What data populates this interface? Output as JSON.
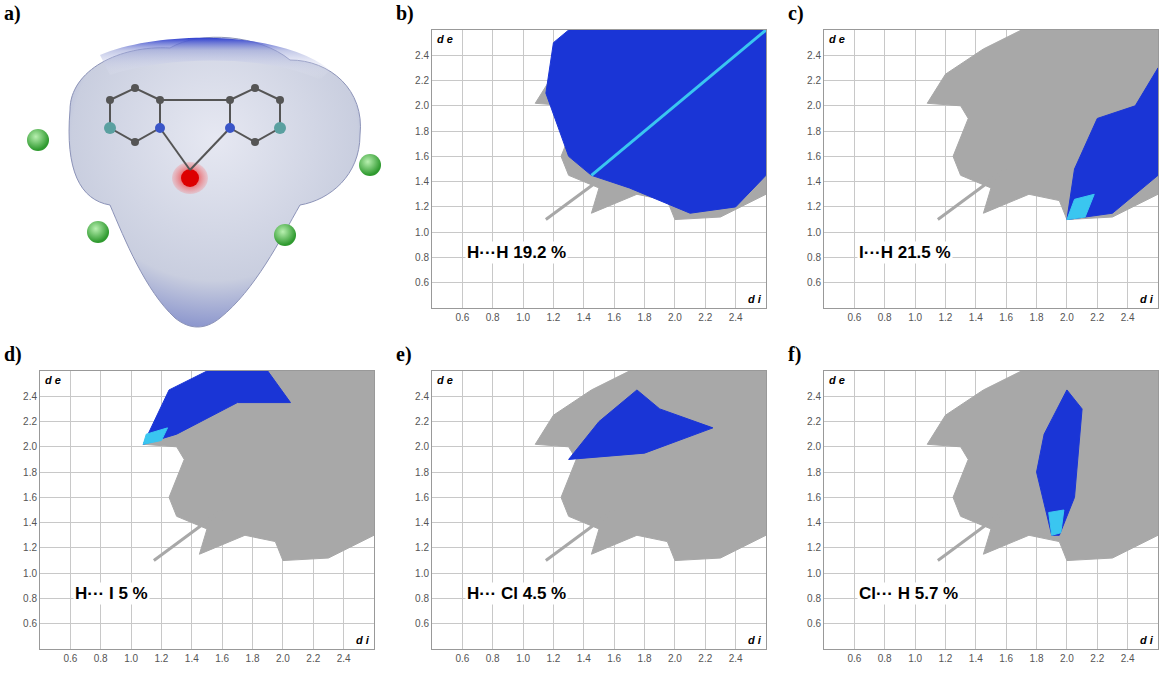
{
  "surface_panel": {
    "label": "a)"
  },
  "chart_data": [
    {
      "type": "scatter",
      "label": "b)",
      "annotation": "H···H 19.2 %",
      "x_label": "d i",
      "y_label": "d e",
      "xlim": [
        0.4,
        2.6
      ],
      "ylim": [
        0.4,
        2.6
      ],
      "xticks": [
        0.6,
        0.8,
        {
          "value": 1,
          "label": "1.0"
        },
        1.2,
        1.4,
        1.6,
        1.8,
        {
          "value": 2,
          "label": "2.0"
        },
        2.2,
        2.4
      ],
      "yticks": [
        0.6,
        0.8,
        {
          "value": 1,
          "label": "1.0"
        },
        1.2,
        1.4,
        1.6,
        1.8,
        {
          "value": 2,
          "label": "2.0"
        },
        2.2,
        2.4
      ],
      "grid": true,
      "series": [
        {
          "type": "area",
          "color": "#a8a8a8",
          "x": [
            1.08,
            1.2,
            1.45,
            1.7,
            2.6,
            2.6,
            2.3,
            2.0,
            1.95,
            1.75,
            1.55,
            1.45,
            1.5,
            1.3,
            1.25,
            1.35,
            1.3,
            1.08
          ],
          "y": [
            2.02,
            2.25,
            2.45,
            2.6,
            2.6,
            1.3,
            1.12,
            1.1,
            1.25,
            1.3,
            1.2,
            1.15,
            1.35,
            1.45,
            1.6,
            1.9,
            2.0,
            2.02
          ]
        },
        {
          "type": "line",
          "color": "#a8a8a8",
          "x": [
            1.15,
            1.6
          ],
          "y": [
            1.1,
            1.5
          ]
        },
        {
          "type": "area",
          "color": "#1a35d6",
          "x": [
            1.2,
            1.15,
            1.3,
            1.45,
            1.7,
            2.1,
            2.4,
            2.6,
            2.6,
            1.3,
            1.2
          ],
          "y": [
            2.5,
            2.1,
            1.6,
            1.45,
            1.35,
            1.15,
            1.2,
            1.45,
            2.6,
            2.6,
            2.5
          ]
        },
        {
          "type": "line",
          "color": "#3ac6f0",
          "x": [
            1.45,
            2.6
          ],
          "y": [
            1.45,
            2.6
          ]
        }
      ]
    },
    {
      "type": "scatter",
      "label": "c)",
      "annotation": "I···H 21.5 %",
      "x_label": "d i",
      "y_label": "d e",
      "xlim": [
        0.4,
        2.6
      ],
      "ylim": [
        0.4,
        2.6
      ],
      "xticks": [
        0.6,
        0.8,
        {
          "value": 1,
          "label": "1.0"
        },
        1.2,
        1.4,
        1.6,
        1.8,
        {
          "value": 2,
          "label": "2.0"
        },
        2.2,
        2.4
      ],
      "yticks": [
        0.6,
        0.8,
        {
          "value": 1,
          "label": "1.0"
        },
        1.2,
        1.4,
        1.6,
        1.8,
        {
          "value": 2,
          "label": "2.0"
        },
        2.2,
        2.4
      ],
      "grid": true,
      "series": [
        {
          "type": "area",
          "color": "#a8a8a8",
          "x": [
            1.08,
            1.2,
            1.45,
            1.7,
            2.6,
            2.6,
            2.3,
            2.0,
            1.95,
            1.75,
            1.55,
            1.45,
            1.5,
            1.3,
            1.25,
            1.35,
            1.3,
            1.08
          ],
          "y": [
            2.02,
            2.25,
            2.45,
            2.6,
            2.6,
            1.3,
            1.12,
            1.1,
            1.25,
            1.3,
            1.2,
            1.15,
            1.35,
            1.45,
            1.6,
            1.9,
            2.0,
            2.02
          ]
        },
        {
          "type": "line",
          "color": "#a8a8a8",
          "x": [
            1.15,
            1.6
          ],
          "y": [
            1.1,
            1.5
          ]
        },
        {
          "type": "area",
          "color": "#1a35d6",
          "x": [
            2.0,
            2.3,
            2.6,
            2.6,
            2.45,
            2.2,
            2.05,
            2.0
          ],
          "y": [
            1.1,
            1.15,
            1.45,
            2.3,
            2.0,
            1.9,
            1.5,
            1.1
          ]
        },
        {
          "type": "area",
          "color": "#3ac6f0",
          "x": [
            2.0,
            2.12,
            2.18,
            2.05,
            2.0
          ],
          "y": [
            1.1,
            1.12,
            1.3,
            1.26,
            1.1
          ]
        }
      ]
    },
    {
      "type": "scatter",
      "label": "d)",
      "annotation": "H··· I 5 %",
      "x_label": "d i",
      "y_label": "d e",
      "xlim": [
        0.4,
        2.6
      ],
      "ylim": [
        0.4,
        2.6
      ],
      "xticks": [
        0.6,
        0.8,
        {
          "value": 1,
          "label": "1.0"
        },
        1.2,
        1.4,
        1.6,
        1.8,
        {
          "value": 2,
          "label": "2.0"
        },
        2.2,
        2.4
      ],
      "yticks": [
        0.6,
        0.8,
        {
          "value": 1,
          "label": "1.0"
        },
        1.2,
        1.4,
        1.6,
        1.8,
        {
          "value": 2,
          "label": "2.0"
        },
        2.2,
        2.4
      ],
      "grid": true,
      "series": [
        {
          "type": "area",
          "color": "#a8a8a8",
          "x": [
            1.08,
            1.2,
            1.45,
            1.7,
            2.6,
            2.6,
            2.3,
            2.0,
            1.95,
            1.75,
            1.55,
            1.45,
            1.5,
            1.3,
            1.25,
            1.35,
            1.3,
            1.08
          ],
          "y": [
            2.02,
            2.25,
            2.45,
            2.6,
            2.6,
            1.3,
            1.12,
            1.1,
            1.25,
            1.3,
            1.2,
            1.15,
            1.35,
            1.45,
            1.6,
            1.9,
            2.0,
            2.02
          ]
        },
        {
          "type": "line",
          "color": "#a8a8a8",
          "x": [
            1.15,
            1.6
          ],
          "y": [
            1.1,
            1.5
          ]
        },
        {
          "type": "area",
          "color": "#1a35d6",
          "x": [
            1.08,
            1.25,
            1.5,
            1.9,
            2.05,
            1.7,
            1.3,
            1.08
          ],
          "y": [
            2.02,
            2.45,
            2.6,
            2.6,
            2.35,
            2.35,
            2.1,
            2.02
          ]
        },
        {
          "type": "area",
          "color": "#3ac6f0",
          "x": [
            1.08,
            1.2,
            1.24,
            1.1,
            1.08
          ],
          "y": [
            2.02,
            2.05,
            2.15,
            2.1,
            2.02
          ]
        }
      ]
    },
    {
      "type": "scatter",
      "label": "e)",
      "annotation": "H··· Cl 4.5 %",
      "x_label": "d i",
      "y_label": "d e",
      "xlim": [
        0.4,
        2.6
      ],
      "ylim": [
        0.4,
        2.6
      ],
      "xticks": [
        0.6,
        0.8,
        {
          "value": 1,
          "label": "1.0"
        },
        1.2,
        1.4,
        1.6,
        1.8,
        {
          "value": 2,
          "label": "2.0"
        },
        2.2,
        2.4
      ],
      "yticks": [
        0.6,
        0.8,
        {
          "value": 1,
          "label": "1.0"
        },
        1.2,
        1.4,
        1.6,
        1.8,
        {
          "value": 2,
          "label": "2.0"
        },
        2.2,
        2.4
      ],
      "grid": true,
      "series": [
        {
          "type": "area",
          "color": "#a8a8a8",
          "x": [
            1.08,
            1.2,
            1.45,
            1.7,
            2.6,
            2.6,
            2.3,
            2.0,
            1.95,
            1.75,
            1.55,
            1.45,
            1.5,
            1.3,
            1.25,
            1.35,
            1.3,
            1.08
          ],
          "y": [
            2.02,
            2.25,
            2.45,
            2.6,
            2.6,
            1.3,
            1.12,
            1.1,
            1.25,
            1.3,
            1.2,
            1.15,
            1.35,
            1.45,
            1.6,
            1.9,
            2.0,
            2.02
          ]
        },
        {
          "type": "line",
          "color": "#a8a8a8",
          "x": [
            1.15,
            1.6
          ],
          "y": [
            1.1,
            1.5
          ]
        },
        {
          "type": "area",
          "color": "#1a35d6",
          "x": [
            1.3,
            1.5,
            1.75,
            1.9,
            2.25,
            1.8,
            1.3
          ],
          "y": [
            1.9,
            2.2,
            2.45,
            2.3,
            2.15,
            1.95,
            1.9
          ]
        }
      ]
    },
    {
      "type": "scatter",
      "label": "f)",
      "annotation": "Cl··· H 5.7 %",
      "x_label": "d i",
      "y_label": "d e",
      "xlim": [
        0.4,
        2.6
      ],
      "ylim": [
        0.4,
        2.6
      ],
      "xticks": [
        0.6,
        0.8,
        {
          "value": 1,
          "label": "1.0"
        },
        1.2,
        1.4,
        1.6,
        1.8,
        {
          "value": 2,
          "label": "2.0"
        },
        2.2,
        2.4
      ],
      "yticks": [
        0.6,
        0.8,
        {
          "value": 1,
          "label": "1.0"
        },
        1.2,
        1.4,
        1.6,
        1.8,
        {
          "value": 2,
          "label": "2.0"
        },
        2.2,
        2.4
      ],
      "grid": true,
      "series": [
        {
          "type": "area",
          "color": "#a8a8a8",
          "x": [
            1.08,
            1.2,
            1.45,
            1.7,
            2.6,
            2.6,
            2.3,
            2.0,
            1.95,
            1.75,
            1.55,
            1.45,
            1.5,
            1.3,
            1.25,
            1.35,
            1.3,
            1.08
          ],
          "y": [
            2.02,
            2.25,
            2.45,
            2.6,
            2.6,
            1.3,
            1.12,
            1.1,
            1.25,
            1.3,
            1.2,
            1.15,
            1.35,
            1.45,
            1.6,
            1.9,
            2.0,
            2.02
          ]
        },
        {
          "type": "line",
          "color": "#a8a8a8",
          "x": [
            1.15,
            1.6
          ],
          "y": [
            1.1,
            1.5
          ]
        },
        {
          "type": "area",
          "color": "#1a35d6",
          "x": [
            1.9,
            1.8,
            1.85,
            2.0,
            2.1,
            2.05,
            1.95,
            1.9
          ],
          "y": [
            1.3,
            1.8,
            2.1,
            2.45,
            2.3,
            1.6,
            1.3,
            1.3
          ]
        },
        {
          "type": "area",
          "color": "#3ac6f0",
          "x": [
            1.9,
            1.96,
            1.98,
            1.88,
            1.9
          ],
          "y": [
            1.3,
            1.32,
            1.5,
            1.48,
            1.3
          ]
        }
      ]
    }
  ]
}
